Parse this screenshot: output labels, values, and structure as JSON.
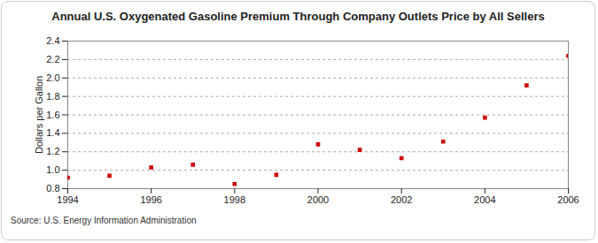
{
  "chart_data": {
    "type": "scatter",
    "title": "Annual U.S. Oxygenated Gasoline Premium Through Company Outlets Price by All Sellers",
    "y_label": "Dollars per Gallon",
    "source": "Source: U.S. Energy Information Administration",
    "x": [
      1994,
      1995,
      1996,
      1997,
      1998,
      1999,
      2000,
      2001,
      2002,
      2003,
      2004,
      2005,
      2006
    ],
    "values": [
      0.92,
      0.94,
      1.03,
      1.06,
      0.85,
      0.95,
      1.28,
      1.22,
      1.13,
      1.31,
      1.57,
      1.92,
      2.24
    ],
    "color": "#cc0000",
    "marker": "square",
    "xlim": [
      1994,
      2006
    ],
    "xticks": [
      1994,
      1996,
      1998,
      2000,
      2002,
      2004,
      2006
    ],
    "ylim": [
      0.8,
      2.4
    ],
    "yticks": [
      0.8,
      {
        "value": 1.0,
        "label": "1.0"
      },
      1.2,
      1.4,
      1.6,
      1.8,
      {
        "value": 2.0,
        "label": "2.0"
      },
      2.2,
      2.4
    ],
    "grid": true
  }
}
